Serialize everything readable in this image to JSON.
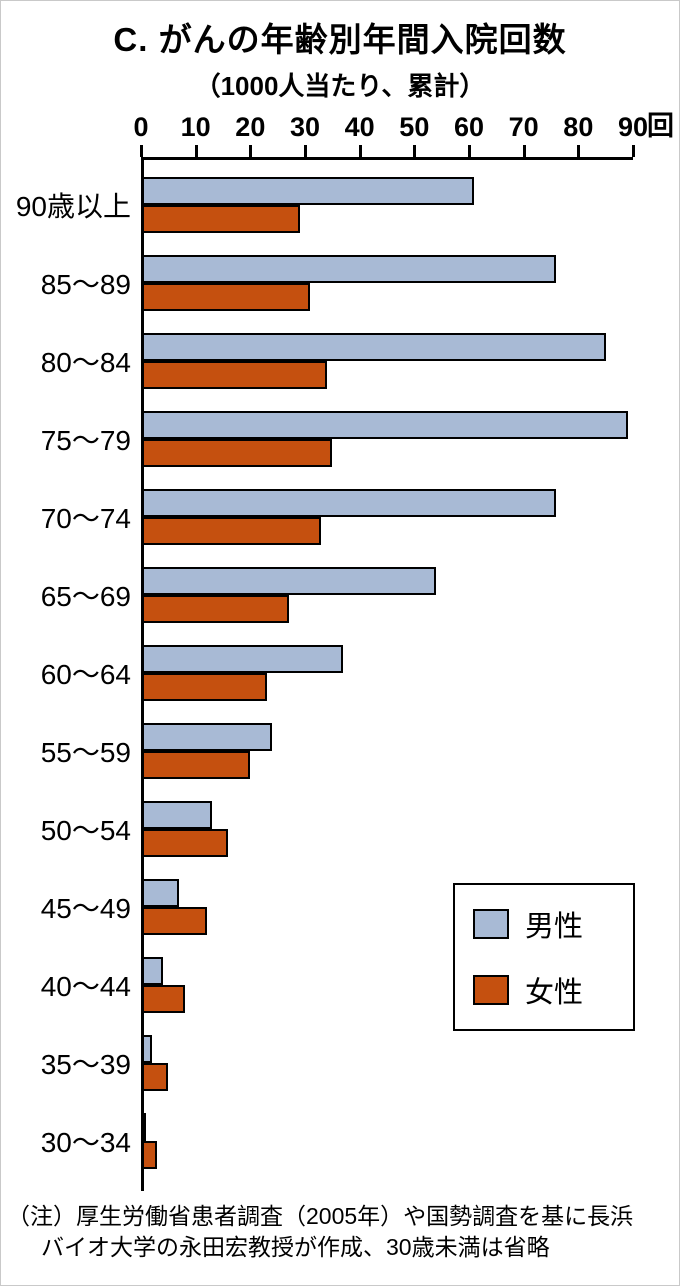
{
  "title": "C. がんの年齢別年間入院回数",
  "subtitle": "（1000人当たり、累計）",
  "legend": {
    "male": "男性",
    "female": "女性"
  },
  "note_line1": "（注）厚生労働省患者調査（2005年）や国勢調査を基に長浜",
  "note_line2": "バイオ大学の永田宏教授が作成、30歳未満は省略",
  "colors": {
    "male": "#a8bad5",
    "female": "#c5500f",
    "axis": "#000000"
  },
  "chart_data": {
    "type": "bar",
    "orientation": "horizontal",
    "title": "C. がんの年齢別年間入院回数",
    "subtitle": "（1000人当たり、累計）",
    "x_unit": "回",
    "xlim": [
      0,
      90
    ],
    "x_ticks": [
      0,
      10,
      20,
      30,
      40,
      50,
      60,
      70,
      80,
      90
    ],
    "categories": [
      "90歳以上",
      "85〜89",
      "80〜84",
      "75〜79",
      "70〜74",
      "65〜69",
      "60〜64",
      "55〜59",
      "50〜54",
      "45〜49",
      "40〜44",
      "35〜39",
      "30〜34"
    ],
    "series": [
      {
        "name": "男性",
        "color": "#a8bad5",
        "values": [
          61,
          76,
          85,
          89,
          76,
          54,
          37,
          24,
          13,
          7,
          4,
          2,
          1
        ]
      },
      {
        "name": "女性",
        "color": "#c5500f",
        "values": [
          29,
          31,
          34,
          35,
          33,
          27,
          23,
          20,
          16,
          12,
          8,
          5,
          3
        ]
      }
    ],
    "legend_position": "lower right",
    "grid": false
  }
}
